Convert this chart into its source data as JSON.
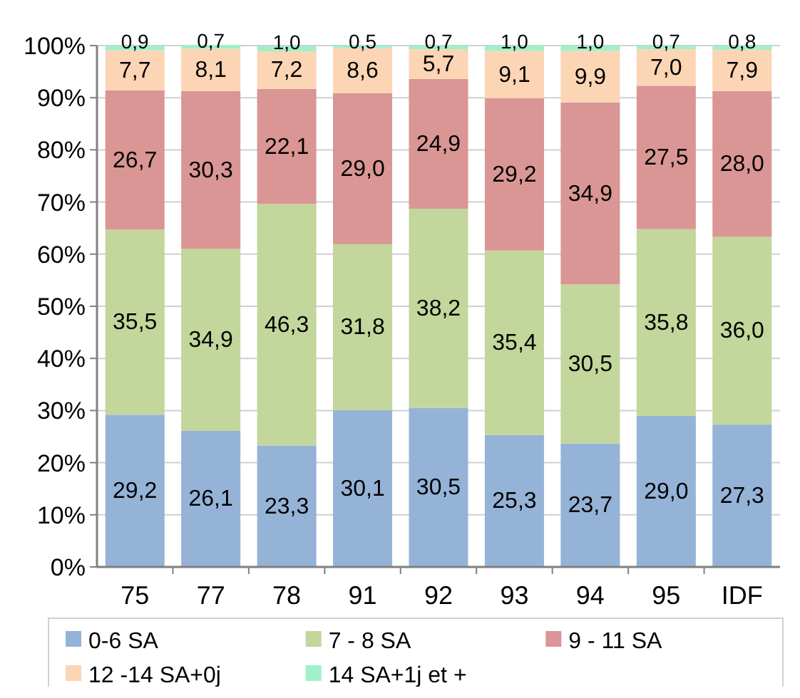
{
  "chart_data": {
    "type": "bar",
    "stacked": true,
    "categories": [
      "75",
      "77",
      "78",
      "91",
      "92",
      "93",
      "94",
      "95",
      "IDF"
    ],
    "series": [
      {
        "name": "0-6 SA",
        "color": "#95b3d7",
        "values": [
          29.2,
          26.1,
          23.3,
          30.1,
          30.5,
          25.3,
          23.7,
          29.0,
          27.3
        ],
        "value_labels": [
          "29,2",
          "26,1",
          "23,3",
          "30,1",
          "30,5",
          "25,3",
          "23,7",
          "29,0",
          "27,3"
        ]
      },
      {
        "name": "7 - 8 SA",
        "color": "#c3d69b",
        "values": [
          35.5,
          34.9,
          46.3,
          31.8,
          38.2,
          35.4,
          30.5,
          35.8,
          36.0
        ],
        "value_labels": [
          "35,5",
          "34,9",
          "46,3",
          "31,8",
          "38,2",
          "35,4",
          "30,5",
          "35,8",
          "36,0"
        ]
      },
      {
        "name": "9 - 11 SA",
        "color": "#d99694",
        "values": [
          26.7,
          30.3,
          22.1,
          29.0,
          24.9,
          29.2,
          34.9,
          27.5,
          28.0
        ],
        "value_labels": [
          "26,7",
          "30,3",
          "22,1",
          "29,0",
          "24,9",
          "29,2",
          "34,9",
          "27,5",
          "28,0"
        ]
      },
      {
        "name": "12 -14 SA+0j",
        "color": "#fcd5b5",
        "values": [
          7.7,
          8.1,
          7.2,
          8.6,
          5.7,
          9.1,
          9.9,
          7.0,
          7.9
        ],
        "value_labels": [
          "7,7",
          "8,1",
          "7,2",
          "8,6",
          "5,7",
          "9,1",
          "9,9",
          "7,0",
          "7,9"
        ]
      },
      {
        "name": "14 SA+1j et +",
        "color": "#a0f0c8",
        "values": [
          0.9,
          0.7,
          1.0,
          0.5,
          0.7,
          1.0,
          1.0,
          0.7,
          0.8
        ],
        "value_labels": [
          "0,9",
          "0,7",
          "1,0",
          "0,5",
          "0,7",
          "1,0",
          "1,0",
          "0,7",
          "0,8"
        ]
      }
    ],
    "ylim": [
      0,
      100
    ],
    "yticks": [
      {
        "value": 0,
        "label": "0%"
      },
      {
        "value": 10,
        "label": "10%"
      },
      {
        "value": 20,
        "label": "20%"
      },
      {
        "value": 30,
        "label": "30%"
      },
      {
        "value": 40,
        "label": "40%"
      },
      {
        "value": 50,
        "label": "50%"
      },
      {
        "value": 60,
        "label": "60%"
      },
      {
        "value": 70,
        "label": "70%"
      },
      {
        "value": 80,
        "label": "80%"
      },
      {
        "value": 90,
        "label": "90%"
      },
      {
        "value": 100,
        "label": "100%"
      }
    ],
    "grid": "y",
    "legend": "bottom"
  }
}
